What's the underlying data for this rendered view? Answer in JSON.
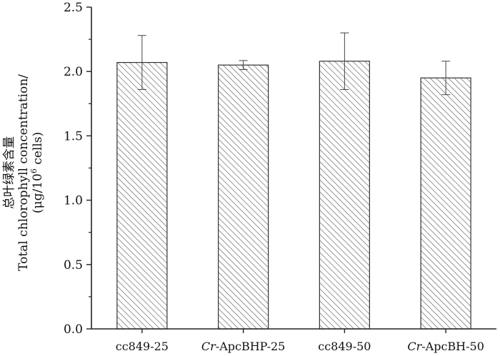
{
  "chart_data": {
    "type": "bar",
    "categories": [
      {
        "prefix": "",
        "italic": "",
        "rest": "cc849-25"
      },
      {
        "prefix": "",
        "italic": "Cr",
        "rest": "-ApcBHP-25"
      },
      {
        "prefix": "",
        "italic": "",
        "rest": "cc849-50"
      },
      {
        "prefix": "",
        "italic": "Cr",
        "rest": "-ApcBH-50"
      }
    ],
    "values": [
      2.07,
      2.05,
      2.08,
      1.95
    ],
    "errors": [
      0.21,
      0.035,
      0.22,
      0.13
    ],
    "ylim": [
      0,
      2.5
    ],
    "yticks": [
      "0.0",
      "0.5",
      "1.0",
      "1.5",
      "2.0",
      "2.5"
    ],
    "ylabel": {
      "line1": "总叶绿素含量",
      "line2": "Total chlorophyll concentration/",
      "line3_a": "(μg/10",
      "line3_sup": "6",
      "line3_b": " cells)"
    },
    "bar_fill": "#ffffff",
    "hatch_color": "#555555",
    "grid": false,
    "legend": "none"
  }
}
